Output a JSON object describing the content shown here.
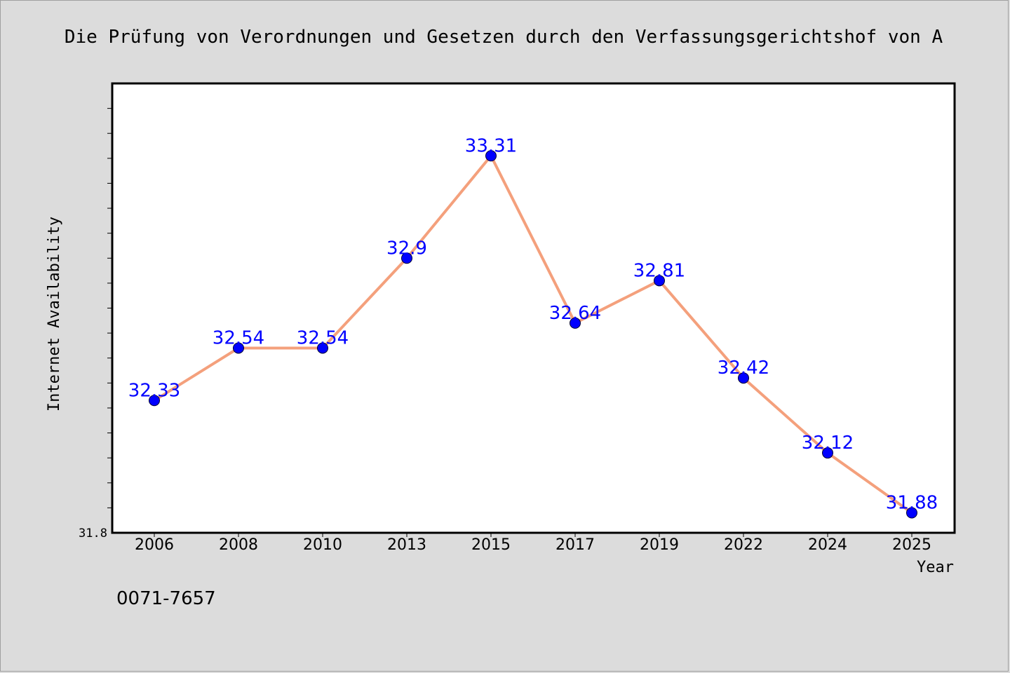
{
  "chart_data": {
    "type": "line",
    "title": "Die Prüfung von Verordnungen und Gesetzen durch den Verfassungsgerichtshof von A",
    "xlabel": "Year",
    "ylabel": "Internet Availability",
    "categories": [
      "2006",
      "2008",
      "2010",
      "2013",
      "2015",
      "2017",
      "2019",
      "2022",
      "2024",
      "2025"
    ],
    "values": [
      32.33,
      32.54,
      32.54,
      32.9,
      33.31,
      32.64,
      32.81,
      32.42,
      32.12,
      31.88
    ],
    "data_labels": [
      "32.33",
      "32.54",
      "32.54",
      "32.9",
      "33.31",
      "32.64",
      "32.81",
      "32.42",
      "32.12",
      "31.88"
    ],
    "ylim": [
      31.8,
      33.6
    ],
    "y_min_label": "31.8",
    "grid": false,
    "line_color": "#f4a07c",
    "marker_color": "#0000ff",
    "label_color": "#0000ff"
  },
  "caption": "0071-7657"
}
